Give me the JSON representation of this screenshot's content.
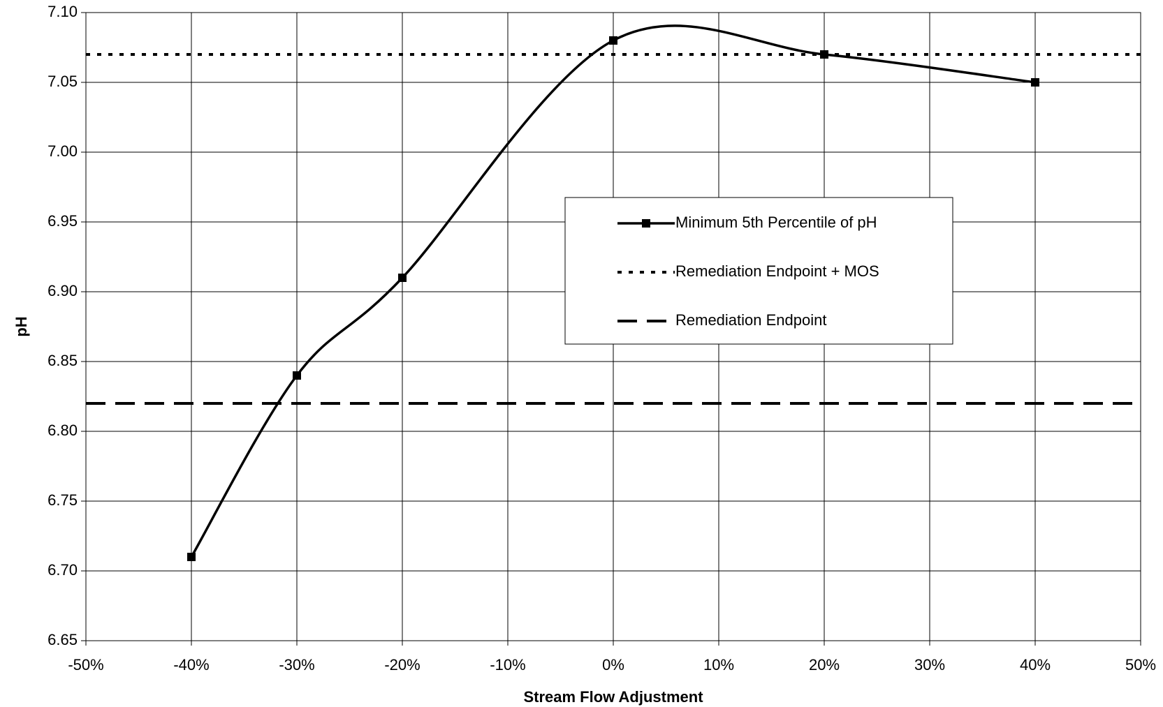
{
  "chart_data": {
    "type": "line",
    "x_label": "Stream Flow Adjustment",
    "y_label": "pH",
    "x": [
      -40,
      -30,
      -20,
      0,
      20,
      40
    ],
    "series": [
      {
        "name": "Minimum 5th Percentile of pH",
        "color": "#000000",
        "marker": "square",
        "smooth": true,
        "values": [
          6.71,
          6.84,
          6.91,
          7.08,
          7.07,
          7.05
        ]
      }
    ],
    "reference_lines": [
      {
        "name": "Remediation Endpoint + MOS",
        "value": 7.07,
        "style": "dotted",
        "color": "#000000"
      },
      {
        "name": "Remediation Endpoint",
        "value": 6.82,
        "style": "dashed",
        "color": "#000000"
      }
    ],
    "xlim": [
      -50,
      50
    ],
    "xticks": [
      {
        "value": -50,
        "label": "-50%"
      },
      {
        "value": -40,
        "label": "-40%"
      },
      {
        "value": -30,
        "label": "-30%"
      },
      {
        "value": -20,
        "label": "-20%"
      },
      {
        "value": -10,
        "label": "-10%"
      },
      {
        "value": 0,
        "label": "0%"
      },
      {
        "value": 10,
        "label": "10%"
      },
      {
        "value": 20,
        "label": "20%"
      },
      {
        "value": 30,
        "label": "30%"
      },
      {
        "value": 40,
        "label": "40%"
      },
      {
        "value": 50,
        "label": "50%"
      }
    ],
    "ylim": [
      6.65,
      7.1
    ],
    "yticks": [
      6.65,
      {
        "value": 6.7,
        "label": "6.70"
      },
      6.75,
      {
        "value": 6.8,
        "label": "6.80"
      },
      6.85,
      {
        "value": 6.9,
        "label": "6.90"
      },
      6.95,
      {
        "value": 7.0,
        "label": "7.00"
      },
      7.05,
      {
        "value": 7.1,
        "label": "7.10"
      }
    ],
    "grid": true
  }
}
